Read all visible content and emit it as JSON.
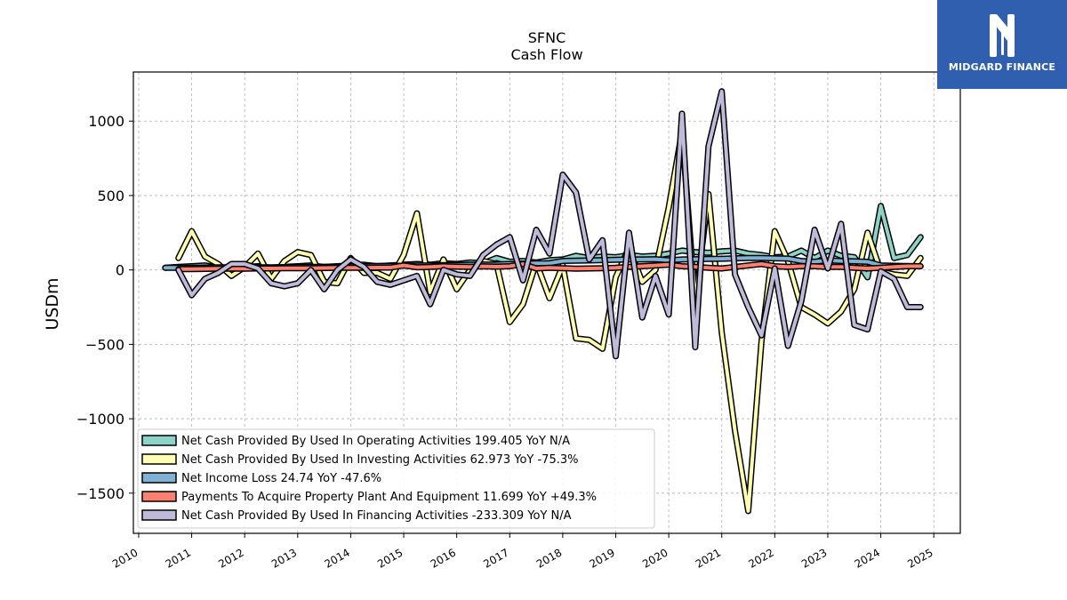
{
  "logo": {
    "text": "MIDGARD FINANCE",
    "bg": "#2f5fae",
    "icon": "midgard-m-logo-icon"
  },
  "chart_data": {
    "type": "line",
    "title": "SFNC",
    "subtitle": "Cash Flow",
    "ylabel": "USDm",
    "xlabel": "",
    "xlim": [
      2009.9,
      2025.5
    ],
    "ylim": [
      -1770,
      1330
    ],
    "yticks": [
      1000,
      500,
      0,
      -500,
      -1000,
      -1500
    ],
    "ytick_labels": [
      "1000",
      "500",
      "0",
      "−500",
      "−1000",
      "−1500"
    ],
    "xticks": [
      2010,
      2011,
      2012,
      2013,
      2014,
      2015,
      2016,
      2017,
      2018,
      2019,
      2020,
      2021,
      2022,
      2023,
      2024,
      2025
    ],
    "xtick_labels": [
      "2010",
      "2011",
      "2012",
      "2013",
      "2014",
      "2015",
      "2016",
      "2017",
      "2018",
      "2019",
      "2020",
      "2021",
      "2022",
      "2023",
      "2024",
      "2025"
    ],
    "grid": true,
    "legend_position": "lower-left",
    "series": [
      {
        "name": "Net Cash Provided By Used In Operating Activities",
        "legend": "Net Cash Provided By Used In Operating Activities  199.405 YoY N/A",
        "color": "#8dd3c7",
        "x": [
          2010.5,
          2010.75,
          2011.0,
          2011.25,
          2011.5,
          2011.75,
          2012.0,
          2012.25,
          2012.5,
          2012.75,
          2013.0,
          2013.25,
          2013.5,
          2013.75,
          2014.0,
          2014.25,
          2014.5,
          2014.75,
          2015.0,
          2015.25,
          2015.5,
          2015.75,
          2016.0,
          2016.25,
          2016.5,
          2016.75,
          2017.0,
          2017.25,
          2017.5,
          2017.75,
          2018.0,
          2018.25,
          2018.5,
          2018.75,
          2019.0,
          2019.25,
          2019.5,
          2019.75,
          2020.0,
          2020.25,
          2020.5,
          2020.75,
          2021.0,
          2021.25,
          2021.5,
          2021.75,
          2022.0,
          2022.25,
          2022.5,
          2022.75,
          2023.0,
          2023.25,
          2023.5,
          2023.75,
          2024.0,
          2024.25,
          2024.5,
          2024.75
        ],
        "values": [
          15,
          20,
          25,
          30,
          15,
          10,
          20,
          25,
          15,
          20,
          25,
          30,
          20,
          25,
          30,
          35,
          25,
          30,
          35,
          40,
          35,
          45,
          40,
          50,
          45,
          80,
          55,
          60,
          50,
          65,
          70,
          95,
          80,
          90,
          85,
          100,
          90,
          95,
          110,
          130,
          120,
          115,
          125,
          130,
          110,
          100,
          85,
          90,
          130,
          80,
          130,
          95,
          85,
          -50,
          430,
          80,
          100,
          220
        ]
      },
      {
        "name": "Net Cash Provided By Used In Investing Activities",
        "legend": "Net Cash Provided By Used In Investing Activities  62.973 YoY -75.3%",
        "color": "#ffffb3",
        "x": [
          2010.75,
          2011.0,
          2011.25,
          2011.5,
          2011.75,
          2012.0,
          2012.25,
          2012.5,
          2012.75,
          2013.0,
          2013.25,
          2013.5,
          2013.75,
          2014.0,
          2014.25,
          2014.5,
          2014.75,
          2015.0,
          2015.25,
          2015.5,
          2015.75,
          2016.0,
          2016.25,
          2016.5,
          2016.75,
          2017.0,
          2017.25,
          2017.5,
          2017.75,
          2018.0,
          2018.25,
          2018.5,
          2018.75,
          2019.0,
          2019.25,
          2019.5,
          2019.75,
          2020.0,
          2020.25,
          2020.5,
          2020.75,
          2021.0,
          2021.25,
          2021.5,
          2021.75,
          2022.0,
          2022.25,
          2022.5,
          2022.75,
          2023.0,
          2023.25,
          2023.5,
          2023.75,
          2024.0,
          2024.25,
          2024.5,
          2024.75
        ],
        "values": [
          80,
          260,
          90,
          40,
          -40,
          20,
          110,
          -60,
          60,
          120,
          100,
          -80,
          -90,
          80,
          -20,
          -20,
          -60,
          100,
          380,
          -150,
          70,
          -130,
          0,
          60,
          40,
          -350,
          -230,
          50,
          -190,
          30,
          -460,
          -470,
          -530,
          -50,
          150,
          -80,
          0,
          420,
          930,
          -220,
          510,
          -420,
          -1080,
          -1620,
          -480,
          260,
          60,
          -250,
          -300,
          -360,
          -280,
          -130,
          250,
          -10,
          -30,
          -40,
          80
        ]
      },
      {
        "name": "Net Income Loss",
        "legend": "Net Income Loss  24.74 YoY -47.6%",
        "color": "#80b1d3",
        "x": [
          2010.5,
          2010.75,
          2011.0,
          2011.25,
          2011.5,
          2011.75,
          2012.0,
          2012.25,
          2012.5,
          2012.75,
          2013.0,
          2013.25,
          2013.5,
          2013.75,
          2014.0,
          2014.25,
          2014.5,
          2014.75,
          2015.0,
          2015.25,
          2015.5,
          2015.75,
          2016.0,
          2016.25,
          2016.5,
          2016.75,
          2017.0,
          2017.25,
          2017.5,
          2017.75,
          2018.0,
          2018.25,
          2018.5,
          2018.75,
          2019.0,
          2019.25,
          2019.5,
          2019.75,
          2020.0,
          2020.25,
          2020.5,
          2020.75,
          2021.0,
          2021.25,
          2021.5,
          2021.75,
          2022.0,
          2022.25,
          2022.5,
          2022.75,
          2023.0,
          2023.25,
          2023.5,
          2023.75,
          2024.0,
          2024.25,
          2024.5,
          2024.75
        ],
        "values": [
          15,
          15,
          15,
          16,
          17,
          17,
          18,
          18,
          18,
          19,
          20,
          20,
          21,
          22,
          24,
          25,
          26,
          27,
          28,
          29,
          30,
          32,
          33,
          35,
          36,
          37,
          40,
          42,
          44,
          45,
          60,
          62,
          64,
          66,
          68,
          70,
          70,
          72,
          65,
          70,
          72,
          74,
          75,
          78,
          80,
          80,
          78,
          76,
          60,
          55,
          65,
          60,
          58,
          55,
          30,
          28,
          26,
          25
        ]
      },
      {
        "name": "Payments To Acquire Property Plant And Equipment",
        "legend": "Payments To Acquire Property Plant And Equipment  11.699 YoY +49.3%",
        "color": "#fb8072",
        "x": [
          2010.75,
          2011.0,
          2011.25,
          2011.5,
          2011.75,
          2012.0,
          2012.25,
          2012.5,
          2012.75,
          2013.0,
          2013.25,
          2013.5,
          2013.75,
          2014.0,
          2014.25,
          2014.5,
          2014.75,
          2015.0,
          2015.25,
          2015.5,
          2015.75,
          2016.0,
          2016.25,
          2016.5,
          2016.75,
          2017.0,
          2017.25,
          2017.5,
          2017.75,
          2018.0,
          2018.25,
          2018.5,
          2018.75,
          2019.0,
          2019.25,
          2019.5,
          2019.75,
          2020.0,
          2020.25,
          2020.5,
          2020.75,
          2021.0,
          2021.25,
          2021.5,
          2021.75,
          2022.0,
          2022.25,
          2022.5,
          2022.75,
          2023.0,
          2023.25,
          2023.5,
          2023.75,
          2024.0,
          2024.25,
          2024.5,
          2024.75
        ],
        "values": [
          5,
          6,
          7,
          8,
          8,
          9,
          10,
          10,
          11,
          12,
          12,
          13,
          14,
          14,
          15,
          16,
          16,
          30,
          18,
          20,
          25,
          22,
          20,
          24,
          22,
          25,
          40,
          10,
          15,
          12,
          8,
          10,
          12,
          14,
          20,
          25,
          30,
          35,
          25,
          20,
          15,
          10,
          20,
          30,
          40,
          25,
          20,
          25,
          25,
          20,
          20,
          15,
          10,
          15,
          20,
          25,
          25
        ]
      },
      {
        "name": "Net Cash Provided By Used In Financing Activities",
        "legend": "Net Cash Provided By Used In Financing Activities  -233.309 YoY N/A",
        "color": "#bebada",
        "x": [
          2010.75,
          2011.0,
          2011.25,
          2011.5,
          2011.75,
          2012.0,
          2012.25,
          2012.5,
          2012.75,
          2013.0,
          2013.25,
          2013.5,
          2013.75,
          2014.0,
          2014.25,
          2014.5,
          2014.75,
          2015.0,
          2015.25,
          2015.5,
          2015.75,
          2016.0,
          2016.25,
          2016.5,
          2016.75,
          2017.0,
          2017.25,
          2017.5,
          2017.75,
          2018.0,
          2018.25,
          2018.5,
          2018.75,
          2019.0,
          2019.25,
          2019.5,
          2019.75,
          2020.0,
          2020.25,
          2020.5,
          2020.75,
          2021.0,
          2021.25,
          2021.5,
          2021.75,
          2022.0,
          2022.25,
          2022.5,
          2022.75,
          2023.0,
          2023.25,
          2023.5,
          2023.75,
          2024.0,
          2024.25,
          2024.5,
          2024.75
        ],
        "values": [
          0,
          -170,
          -60,
          -20,
          40,
          40,
          10,
          -90,
          -110,
          -90,
          0,
          -130,
          0,
          70,
          20,
          -80,
          -100,
          -70,
          -40,
          -230,
          0,
          -30,
          -40,
          100,
          170,
          220,
          -70,
          270,
          110,
          640,
          520,
          70,
          200,
          -580,
          250,
          -320,
          -40,
          -300,
          1050,
          -520,
          830,
          1200,
          -30,
          -250,
          -440,
          10,
          -510,
          -210,
          270,
          10,
          310,
          -370,
          -400,
          -10,
          -60,
          -250,
          -250
        ]
      }
    ]
  }
}
